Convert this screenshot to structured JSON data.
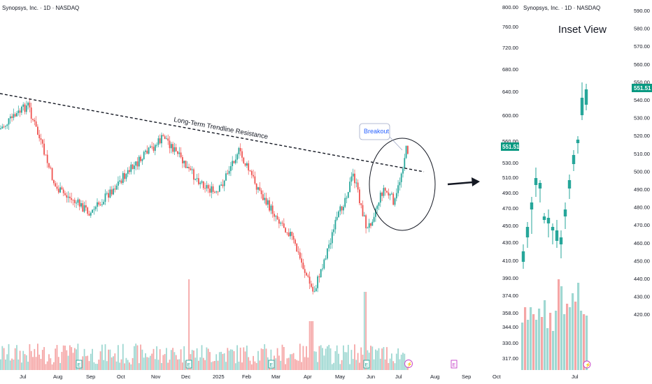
{
  "main_chart": {
    "title": "Synopsys, Inc. · 1D · NASDAQ",
    "x_axis_labels": [
      "Jul",
      "Aug",
      "Sep",
      "Oct",
      "Nov",
      "Dec",
      "2025",
      "Feb",
      "Mar",
      "Apr",
      "May",
      "Jun",
      "Jul",
      "Aug",
      "Sep",
      "Oct"
    ],
    "y_axis_labels": [
      "800.00",
      "760.00",
      "720.00",
      "680.00",
      "640.00",
      "600.00",
      "560.00",
      "530.00",
      "510.00",
      "490.00",
      "470.00",
      "450.00",
      "430.00",
      "410.00",
      "390.00",
      "374.00",
      "358.00",
      "344.00",
      "330.00",
      "317.00"
    ],
    "last_price": "551.51",
    "trendline_label": "Long-Term Trendline Resistance",
    "callout_label": "Breakout",
    "earnings_marker": "E",
    "dividend_marker": "⚡"
  },
  "inset_chart": {
    "title": "Synopsys, Inc. · 1D · NASDAQ",
    "heading": "Inset View",
    "x_axis_labels": [
      "Jul"
    ],
    "y_axis_labels": [
      "590.00",
      "580.00",
      "570.00",
      "560.00",
      "550.00",
      "540.00",
      "530.00",
      "520.00",
      "510.00",
      "500.00",
      "490.00",
      "480.00",
      "470.00",
      "460.00",
      "450.00",
      "440.00",
      "430.00",
      "420.00"
    ],
    "last_price": "551.51"
  },
  "colors": {
    "up": "#26a69a",
    "down": "#ef5350",
    "vol_up": "#9fd8d2",
    "vol_down": "#f5a6a6",
    "price_tag": "#089981",
    "callout": "#2962ff"
  },
  "chart_data": [
    {
      "type": "candlestick",
      "title": "Synopsys, Inc. · 1D · NASDAQ",
      "x_range": [
        "Jul 2024",
        "Oct 2025"
      ],
      "y_scale": "log",
      "y_range": [
        317,
        800
      ],
      "last_close": 551.51,
      "anchor_closes": [
        {
          "date": "Jun 2024",
          "close": 560
        },
        {
          "date": "Jul 2024",
          "close": 590
        },
        {
          "date": "Aug 2024",
          "close": 470
        },
        {
          "date": "Sep 2024",
          "close": 505
        },
        {
          "date": "Oct 2024",
          "close": 500
        },
        {
          "date": "Nov 2024",
          "close": 560
        },
        {
          "date": "Dec 2024",
          "close": 500
        },
        {
          "date": "Jan 2025",
          "close": 510
        },
        {
          "date": "Feb 2025",
          "close": 520
        },
        {
          "date": "Mar 2025",
          "close": 440
        },
        {
          "date": "Apr 2025",
          "close": 365
        },
        {
          "date": "May 2025",
          "close": 510
        },
        {
          "date": "Jun 2025",
          "close": 465
        },
        {
          "date": "Jul 2025",
          "close": 551.51
        }
      ],
      "annotations": [
        "Long-Term Trendline Resistance",
        "Breakout"
      ]
    },
    {
      "type": "candlestick",
      "title": "Inset View",
      "y_range": [
        420,
        590
      ],
      "last_close": 551.51
    }
  ]
}
